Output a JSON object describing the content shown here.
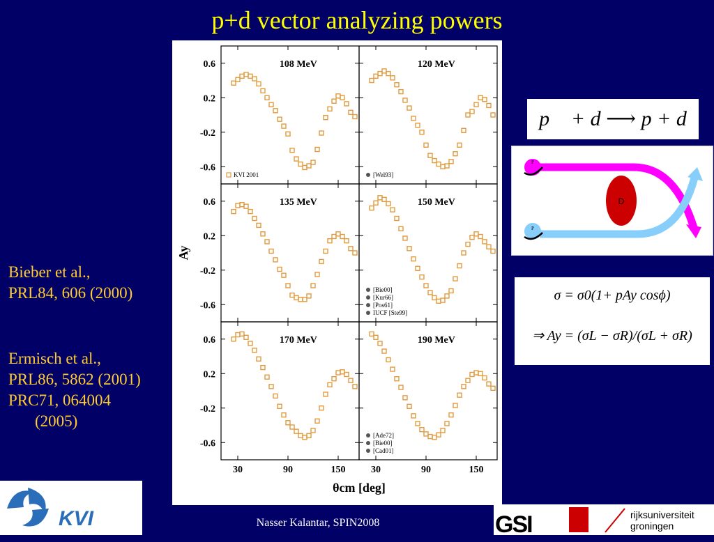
{
  "title": "p+d vector analyzing powers",
  "references": {
    "group1": [
      "Bieber et al.,",
      "PRL84, 606 (2000)"
    ],
    "group2": [
      "Ermisch et al.,",
      "PRL86, 5862 (2001)",
      "PRC71, 064004",
      "(2005)"
    ]
  },
  "equation_reaction": "p⃗ + d ⟶ p + d",
  "equation_cross_section": "σ = σ0(1+ pAy cosϕ)",
  "equation_ay": "⇒ Ay = (σL − σR)/(σL + σR)",
  "footer": "Nasser Kalantar, SPIN2008",
  "logos": {
    "kvi": "KVI",
    "gsi": "GSI",
    "rug_line1": "rijksuniversiteit",
    "rug_line2": "groningen"
  },
  "diagram": {
    "target_label": "D",
    "beam_label": "P",
    "colors": {
      "upper": "#ff00ff",
      "lower": "#87cefa",
      "target": "#cc0000"
    }
  },
  "chart_data": {
    "type": "scatter",
    "ylabel": "Ay",
    "xlabel": "θcm [deg]",
    "xticks": [
      "30",
      "90",
      "150"
    ],
    "yticks": [
      "0.6",
      "0.2",
      "-0.2",
      "-0.6"
    ],
    "xlim": [
      10,
      175
    ],
    "ylim": [
      -0.8,
      0.8
    ],
    "marker_color": "#e39a3c",
    "panels": [
      {
        "energy": "108 MeV",
        "legend": [
          "KVI 2001"
        ],
        "x": [
          25,
          30,
          35,
          40,
          45,
          50,
          55,
          60,
          65,
          70,
          75,
          80,
          85,
          90,
          95,
          100,
          105,
          110,
          115,
          120,
          125,
          130,
          135,
          140,
          145,
          150,
          155,
          160,
          165,
          170
        ],
        "y": [
          0.37,
          0.41,
          0.45,
          0.47,
          0.45,
          0.42,
          0.36,
          0.28,
          0.2,
          0.12,
          0.05,
          -0.05,
          -0.13,
          -0.22,
          -0.41,
          -0.51,
          -0.57,
          -0.61,
          -0.59,
          -0.55,
          -0.4,
          -0.21,
          -0.03,
          0.07,
          0.16,
          0.22,
          0.2,
          0.13,
          0.03,
          -0.02
        ]
      },
      {
        "energy": "120 MeV",
        "legend": [
          "[Wel93]"
        ],
        "x": [
          25,
          30,
          35,
          40,
          45,
          50,
          55,
          60,
          65,
          70,
          75,
          80,
          85,
          90,
          95,
          100,
          105,
          110,
          115,
          120,
          125,
          130,
          135,
          140,
          145,
          150,
          155,
          160,
          165,
          170
        ],
        "y": [
          0.4,
          0.45,
          0.48,
          0.51,
          0.48,
          0.43,
          0.35,
          0.27,
          0.17,
          0.08,
          -0.04,
          -0.12,
          -0.2,
          -0.35,
          -0.47,
          -0.53,
          -0.57,
          -0.6,
          -0.59,
          -0.54,
          -0.45,
          -0.35,
          -0.18,
          0.0,
          0.04,
          0.12,
          0.2,
          0.18,
          0.11,
          0.0
        ]
      },
      {
        "energy": "135 MeV",
        "legend": [],
        "x": [
          25,
          30,
          35,
          40,
          45,
          50,
          55,
          60,
          65,
          70,
          75,
          80,
          85,
          90,
          95,
          100,
          105,
          110,
          115,
          120,
          125,
          130,
          135,
          140,
          145,
          150,
          155,
          160,
          165,
          170
        ],
        "y": [
          0.48,
          0.55,
          0.56,
          0.54,
          0.48,
          0.4,
          0.32,
          0.22,
          0.13,
          0.02,
          -0.08,
          -0.19,
          -0.26,
          -0.38,
          -0.49,
          -0.52,
          -0.54,
          -0.54,
          -0.5,
          -0.38,
          -0.25,
          -0.1,
          0.02,
          0.14,
          0.19,
          0.22,
          0.19,
          0.14,
          0.05,
          0.0
        ]
      },
      {
        "energy": "150 MeV",
        "legend": [
          "[Bie00]",
          "[Kur66]",
          "[Pos61]",
          "IUCF [Ste99]"
        ],
        "x": [
          25,
          30,
          35,
          40,
          45,
          50,
          55,
          60,
          65,
          70,
          75,
          80,
          85,
          90,
          95,
          100,
          105,
          110,
          115,
          120,
          125,
          130,
          135,
          140,
          145,
          150,
          155,
          160,
          165,
          170
        ],
        "y": [
          0.52,
          0.58,
          0.64,
          0.62,
          0.57,
          0.5,
          0.4,
          0.28,
          0.17,
          0.05,
          -0.07,
          -0.18,
          -0.28,
          -0.38,
          -0.46,
          -0.52,
          -0.56,
          -0.55,
          -0.5,
          -0.44,
          -0.3,
          -0.15,
          0.0,
          0.1,
          0.18,
          0.22,
          0.19,
          0.13,
          0.07,
          0.02
        ]
      },
      {
        "energy": "170 MeV",
        "legend": [],
        "x": [
          25,
          30,
          35,
          40,
          45,
          50,
          55,
          60,
          65,
          70,
          75,
          80,
          85,
          90,
          95,
          100,
          105,
          110,
          115,
          120,
          125,
          130,
          135,
          140,
          145,
          150,
          155,
          160,
          165,
          170
        ],
        "y": [
          0.6,
          0.65,
          0.66,
          0.62,
          0.55,
          0.47,
          0.37,
          0.27,
          0.16,
          0.05,
          -0.06,
          -0.18,
          -0.28,
          -0.37,
          -0.42,
          -0.47,
          -0.52,
          -0.54,
          -0.52,
          -0.46,
          -0.35,
          -0.2,
          -0.04,
          0.07,
          0.14,
          0.21,
          0.22,
          0.19,
          0.12,
          0.05
        ]
      },
      {
        "energy": "190 MeV",
        "legend": [
          "[Ade72]",
          "[Bie00]",
          "[Cad01]"
        ],
        "x": [
          25,
          30,
          35,
          40,
          45,
          50,
          55,
          60,
          65,
          70,
          75,
          80,
          85,
          90,
          95,
          100,
          105,
          110,
          115,
          120,
          125,
          130,
          135,
          140,
          145,
          150,
          155,
          160,
          165,
          170
        ],
        "y": [
          0.66,
          0.62,
          0.55,
          0.46,
          0.36,
          0.25,
          0.14,
          0.04,
          -0.08,
          -0.18,
          -0.29,
          -0.38,
          -0.45,
          -0.5,
          -0.53,
          -0.54,
          -0.51,
          -0.46,
          -0.38,
          -0.28,
          -0.17,
          -0.05,
          0.05,
          0.12,
          0.19,
          0.21,
          0.2,
          0.15,
          0.08,
          0.03
        ]
      }
    ]
  }
}
